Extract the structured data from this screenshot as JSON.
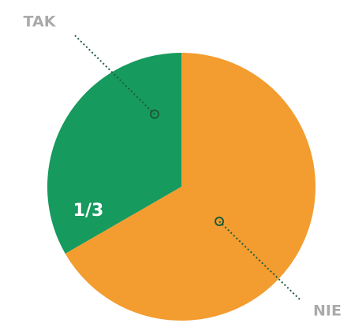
{
  "chart_data": {
    "type": "pie",
    "categories": [
      "TAK",
      "NIE"
    ],
    "values": [
      0.3333,
      0.6667
    ],
    "value_labels": [
      "1/3",
      null
    ],
    "colors": [
      "#179a5e",
      "#f39c2f"
    ]
  }
}
